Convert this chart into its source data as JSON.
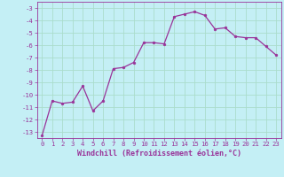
{
  "x": [
    0,
    1,
    2,
    3,
    4,
    5,
    6,
    7,
    8,
    9,
    10,
    11,
    12,
    13,
    14,
    15,
    16,
    17,
    18,
    19,
    20,
    21,
    22,
    23
  ],
  "y": [
    -13.3,
    -10.5,
    -10.7,
    -10.6,
    -9.3,
    -11.3,
    -10.5,
    -7.9,
    -7.8,
    -7.4,
    -5.8,
    -5.8,
    -5.9,
    -3.7,
    -3.5,
    -3.3,
    -3.6,
    -4.7,
    -4.6,
    -5.3,
    -5.4,
    -5.4,
    -6.1,
    -6.8
  ],
  "line_color": "#993399",
  "marker_color": "#993399",
  "bg_color": "#c4eff5",
  "grid_color": "#aaddcc",
  "xlabel": "Windchill (Refroidissement éolien,°C)",
  "xlim": [
    -0.5,
    23.5
  ],
  "ylim": [
    -13.5,
    -2.5
  ],
  "yticks": [
    -13,
    -12,
    -11,
    -10,
    -9,
    -8,
    -7,
    -6,
    -5,
    -4,
    -3
  ],
  "xticks": [
    0,
    1,
    2,
    3,
    4,
    5,
    6,
    7,
    8,
    9,
    10,
    11,
    12,
    13,
    14,
    15,
    16,
    17,
    18,
    19,
    20,
    21,
    22,
    23
  ],
  "tick_color": "#993399",
  "tick_fontsize": 5.2,
  "xlabel_fontsize": 6.0,
  "linewidth": 0.9,
  "markersize": 2.0
}
